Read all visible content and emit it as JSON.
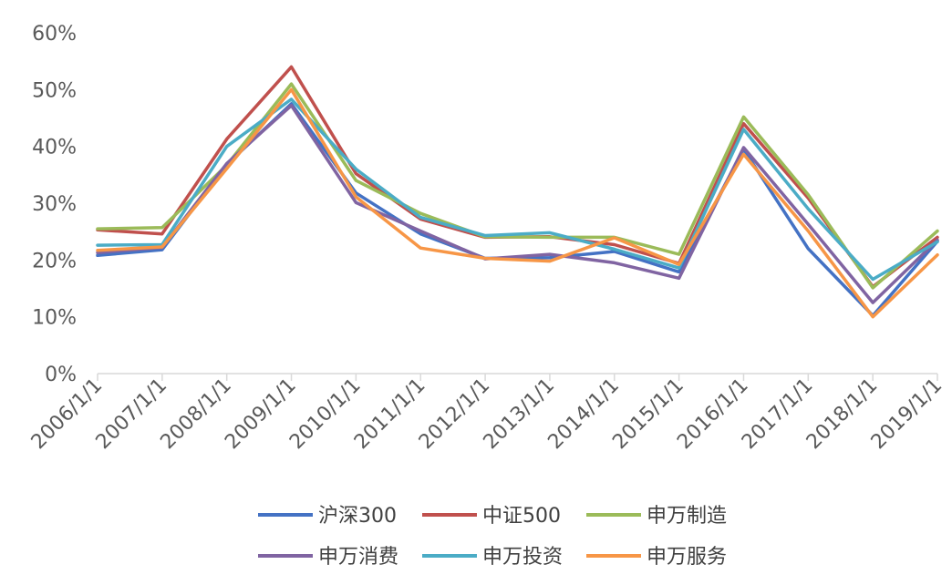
{
  "chart_data": {
    "type": "line",
    "categories": [
      "2006/1/1",
      "2007/1/1",
      "2008/1/1",
      "2009/1/1",
      "2010/1/1",
      "2011/1/1",
      "2012/1/1",
      "2013/1/1",
      "2014/1/1",
      "2015/1/1",
      "2016/1/1",
      "2017/1/1",
      "2018/1/1",
      "2019/1/1"
    ],
    "ylim": [
      0,
      60
    ],
    "yticks": [
      "0%",
      "10%",
      "20%",
      "30%",
      "40%",
      "50%",
      "60%"
    ],
    "grid": false,
    "legend_position": "bottom",
    "series": [
      {
        "name": "沪深300",
        "color": "#4472C4",
        "values": [
          20.8,
          21.8,
          36.8,
          47.5,
          31.8,
          24.6,
          20.3,
          20.4,
          21.5,
          17.9,
          39.5,
          22.0,
          10.2,
          23.3
        ]
      },
      {
        "name": "中证500",
        "color": "#C0504D",
        "values": [
          25.3,
          24.6,
          41.3,
          54.0,
          35.2,
          27.2,
          24.0,
          24.1,
          22.7,
          19.4,
          44.0,
          30.9,
          15.3,
          24.0
        ]
      },
      {
        "name": "申万制造",
        "color": "#9BBB59",
        "values": [
          25.5,
          25.7,
          36.7,
          51.0,
          34.0,
          28.2,
          24.1,
          24.0,
          24.0,
          21.0,
          45.2,
          31.5,
          15.1,
          25.1
        ]
      },
      {
        "name": "申万消费",
        "color": "#8064A2",
        "values": [
          21.3,
          22.2,
          37.0,
          47.2,
          30.1,
          25.1,
          20.2,
          21.0,
          19.5,
          16.8,
          39.8,
          26.3,
          12.5,
          23.5
        ]
      },
      {
        "name": "申万投资",
        "color": "#4BACC6",
        "values": [
          22.6,
          22.7,
          40.0,
          48.3,
          36.0,
          27.5,
          24.3,
          24.8,
          21.9,
          18.6,
          43.0,
          29.0,
          16.6,
          23.2
        ]
      },
      {
        "name": "申万服务",
        "color": "#F79646",
        "values": [
          21.7,
          22.3,
          36.1,
          50.0,
          31.1,
          22.1,
          20.3,
          19.8,
          23.9,
          19.2,
          38.6,
          25.1,
          10.0,
          20.9
        ]
      }
    ]
  }
}
